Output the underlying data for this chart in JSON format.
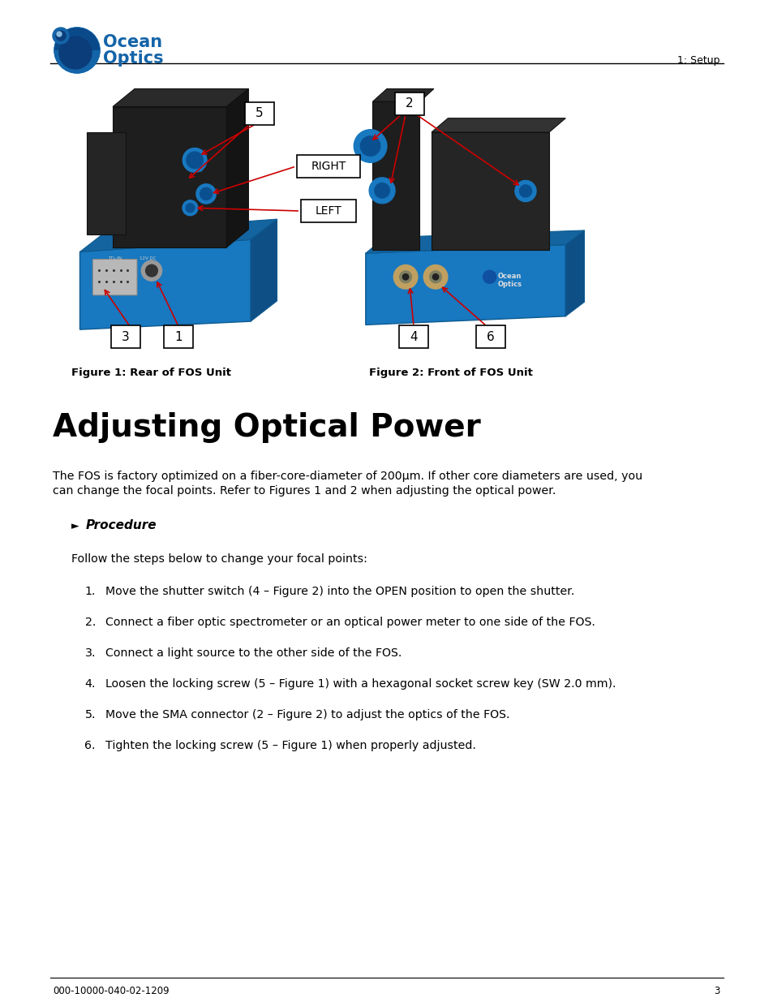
{
  "page_background": "#ffffff",
  "header_line_color": "#000000",
  "header_right_text": "1: Setup",
  "footer_left_text": "000-10000-040-02-1209",
  "footer_right_text": "3",
  "section_title": "Adjusting Optical Power",
  "intro_text": "The FOS is factory optimized on a fiber-core-diameter of 200μm. If other core diameters are used, you\ncan change the focal points. Refer to Figures 1 and 2 when adjusting the optical power.",
  "procedure_label": "Procedure",
  "follow_text": "Follow the steps below to change your focal points:",
  "steps": [
    "Move the shutter switch (4 – Figure 2) into the OPEN position to open the shutter.",
    "Connect a fiber optic spectrometer or an optical power meter to one side of the FOS.",
    "Connect a light source to the other side of the FOS.",
    "Loosen the locking screw (5 – Figure 1) with a hexagonal socket screw key (SW 2.0 mm).",
    "Move the SMA connector (2 – Figure 2) to adjust the optics of the FOS.",
    "Tighten the locking screw (5 – Figure 1) when properly adjusted."
  ],
  "fig1_caption": "Figure 1: Rear of FOS Unit",
  "fig2_caption": "Figure 2: Front of FOS Unit",
  "arrow_color": "#cc0000",
  "right_label": "RIGHT",
  "left_label": "LEFT",
  "logo_text_ocean": "Ocean",
  "logo_text_optics": "Optics"
}
